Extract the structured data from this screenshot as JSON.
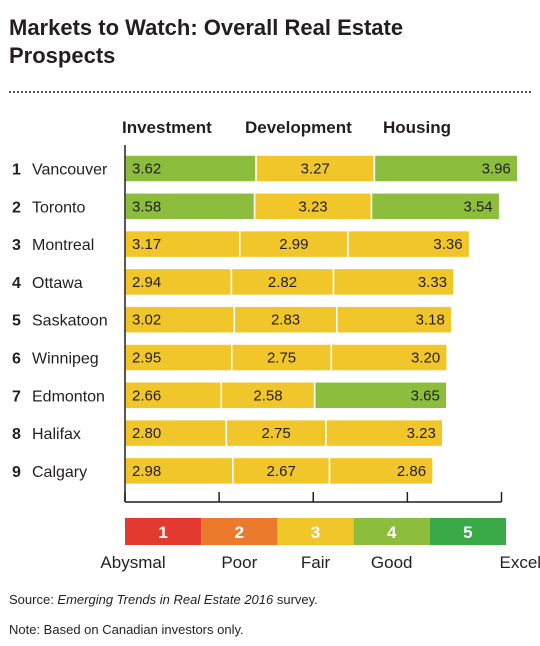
{
  "title": "Markets to Watch: Overall Real Estate Prospects",
  "source_prefix": "Source: ",
  "source_title": "Emerging Trends in Real Estate 2016",
  "source_suffix": " survey.",
  "note": "Note: Based on Canadian investors only.",
  "colors": {
    "fair": "#f1c62a",
    "good": "#8cbd3c",
    "abysmal": "#e23a2e",
    "poor": "#ec7a2c",
    "excellent": "#3aaa48"
  },
  "chart_data": {
    "type": "bar",
    "stacked": true,
    "orientation": "horizontal",
    "series": [
      {
        "name": "Investment",
        "values": [
          3.62,
          3.58,
          3.17,
          2.94,
          3.02,
          2.95,
          2.66,
          2.8,
          2.98
        ]
      },
      {
        "name": "Development",
        "values": [
          3.27,
          3.23,
          2.99,
          2.82,
          2.83,
          2.75,
          2.58,
          2.75,
          2.67
        ]
      },
      {
        "name": "Housing",
        "values": [
          3.96,
          3.54,
          3.36,
          3.33,
          3.18,
          3.2,
          3.65,
          3.23,
          2.86
        ]
      }
    ],
    "categories": [
      {
        "rank": "1",
        "name": "Vancouver"
      },
      {
        "rank": "2",
        "name": "Toronto"
      },
      {
        "rank": "3",
        "name": "Montreal"
      },
      {
        "rank": "4",
        "name": "Ottawa"
      },
      {
        "rank": "5",
        "name": "Saskatoon"
      },
      {
        "rank": "6",
        "name": "Winnipeg"
      },
      {
        "rank": "7",
        "name": "Edmonton"
      },
      {
        "rank": "8",
        "name": "Halifax"
      },
      {
        "rank": "9",
        "name": "Calgary"
      }
    ],
    "value_labels": [
      [
        "3.62",
        "3.27",
        "3.96"
      ],
      [
        "3.58",
        "3.23",
        "3.54"
      ],
      [
        "3.17",
        "2.99",
        "3.36"
      ],
      [
        "2.94",
        "2.82",
        "3.33"
      ],
      [
        "3.02",
        "2.83",
        "3.18"
      ],
      [
        "2.95",
        "2.75",
        "3.20"
      ],
      [
        "2.66",
        "2.58",
        "3.65"
      ],
      [
        "2.80",
        "2.75",
        "3.23"
      ],
      [
        "2.98",
        "2.67",
        "2.86"
      ]
    ],
    "scale": [
      {
        "value": "1",
        "label": "Abysmal",
        "color": "#e23a2e"
      },
      {
        "value": "2",
        "label": "Poor",
        "color": "#ec7a2c"
      },
      {
        "value": "3",
        "label": "Fair",
        "color": "#f1c62a"
      },
      {
        "value": "4",
        "label": "Good",
        "color": "#8cbd3c"
      },
      {
        "value": "5",
        "label": "Excellent",
        "color": "#3aaa48"
      }
    ],
    "color_rule": "segments scoring 3.5 or higher are Good (green); others Fair (yellow)"
  }
}
